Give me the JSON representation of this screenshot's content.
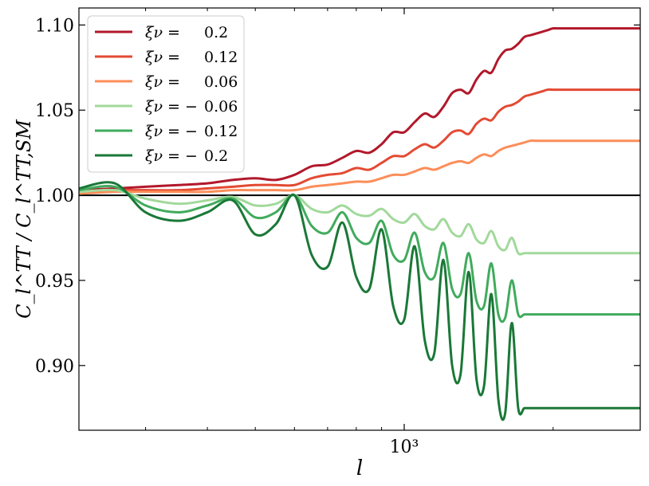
{
  "chart_data": {
    "type": "line",
    "xscale": "log",
    "xlim": [
      220,
      3000
    ],
    "ylim": [
      0.862,
      1.11
    ],
    "xlabel": "l",
    "ylabel": "C_l^TT / C_l^TT,SM",
    "x_ticks": [
      1000
    ],
    "x_tick_labels": [
      "10³"
    ],
    "y_ticks": [
      0.9,
      0.95,
      1.0,
      1.05,
      1.1
    ],
    "y_tick_labels": [
      "0.90",
      "0.95",
      "1.00",
      "1.05",
      "1.10"
    ],
    "grid": false,
    "legend_position": "top-left",
    "reference_line": 1.0,
    "x": [
      220,
      260,
      300,
      350,
      400,
      450,
      500,
      550,
      600,
      650,
      700,
      750,
      800,
      850,
      900,
      950,
      1000,
      1050,
      1100,
      1150,
      1200,
      1250,
      1300,
      1350,
      1400,
      1450,
      1500,
      1550,
      1600,
      1650,
      1700,
      1750,
      1800,
      1850,
      1900,
      1950,
      2000,
      2050,
      2100,
      2150,
      2200,
      2250,
      2300,
      2350,
      2400,
      2450,
      2500,
      2550,
      2600,
      2650,
      2700,
      2750,
      2800,
      2850,
      2900,
      2950,
      3000
    ],
    "series": [
      {
        "name": "ξ_ν = 0.2",
        "legend": {
          "lhs": "ξν =",
          "rhs": "0.2"
        },
        "color": "#b2182b",
        "values": [
          1.003,
          1.004,
          1.005,
          1.006,
          1.007,
          1.009,
          1.01,
          1.009,
          1.012,
          1.017,
          1.018,
          1.022,
          1.026,
          1.025,
          1.03,
          1.037,
          1.037,
          1.043,
          1.048,
          1.046,
          1.052,
          1.06,
          1.062,
          1.06,
          1.068,
          1.073,
          1.072,
          1.08,
          1.085,
          1.086,
          1.089,
          1.093,
          1.094,
          1.095,
          1.096,
          1.097,
          1.098,
          1.098,
          1.098,
          1.098,
          1.098,
          1.098,
          1.098,
          1.098,
          1.098,
          1.098,
          1.098,
          1.098,
          1.098,
          1.098,
          1.098,
          1.098,
          1.098,
          1.098,
          1.098,
          1.098,
          1.098
        ]
      },
      {
        "name": "ξ_ν = 0.12",
        "legend": {
          "lhs": "ξν =",
          "rhs": "0.12"
        },
        "color": "#e34a33",
        "values": [
          1.002,
          1.003,
          1.003,
          1.003,
          1.004,
          1.005,
          1.006,
          1.006,
          1.006,
          1.01,
          1.012,
          1.013,
          1.016,
          1.015,
          1.019,
          1.023,
          1.023,
          1.027,
          1.03,
          1.028,
          1.032,
          1.037,
          1.038,
          1.036,
          1.042,
          1.045,
          1.044,
          1.049,
          1.052,
          1.053,
          1.055,
          1.058,
          1.059,
          1.06,
          1.061,
          1.062,
          1.062,
          1.062,
          1.062,
          1.062,
          1.062,
          1.062,
          1.062,
          1.062,
          1.062,
          1.062,
          1.062,
          1.062,
          1.062,
          1.062,
          1.062,
          1.062,
          1.062,
          1.062,
          1.062,
          1.062,
          1.062
        ]
      },
      {
        "name": "ξ_ν = 0.06",
        "legend": {
          "lhs": "ξν =",
          "rhs": "0.06"
        },
        "color": "#fc8d59",
        "values": [
          1.001,
          1.002,
          1.002,
          1.002,
          1.002,
          1.003,
          1.003,
          1.003,
          1.003,
          1.005,
          1.006,
          1.007,
          1.008,
          1.008,
          1.01,
          1.012,
          1.012,
          1.014,
          1.016,
          1.015,
          1.017,
          1.019,
          1.02,
          1.019,
          1.022,
          1.024,
          1.023,
          1.026,
          1.028,
          1.029,
          1.03,
          1.031,
          1.032,
          1.032,
          1.032,
          1.032,
          1.032,
          1.032,
          1.032,
          1.032,
          1.032,
          1.032,
          1.032,
          1.032,
          1.032,
          1.032,
          1.032,
          1.032,
          1.032,
          1.032,
          1.032,
          1.032,
          1.032,
          1.032,
          1.032,
          1.032,
          1.032
        ]
      },
      {
        "name": "ξ_ν = − 0.06",
        "legend": {
          "lhs": "ξν = −",
          "rhs": "0.06"
        },
        "color": "#a1d99b",
        "values": [
          1.002,
          1.003,
          0.998,
          0.995,
          0.997,
          0.999,
          0.994,
          0.995,
          1.0,
          0.992,
          0.99,
          0.994,
          0.989,
          0.988,
          0.992,
          0.986,
          0.984,
          0.989,
          0.982,
          0.98,
          0.986,
          0.978,
          0.976,
          0.983,
          0.974,
          0.972,
          0.979,
          0.97,
          0.968,
          0.975,
          0.966,
          0.966,
          0.966,
          0.966,
          0.966,
          0.966,
          0.966,
          0.966,
          0.966,
          0.966,
          0.966,
          0.966,
          0.966,
          0.966,
          0.966,
          0.966,
          0.966,
          0.966,
          0.966,
          0.966,
          0.966,
          0.966,
          0.966,
          0.966,
          0.966,
          0.966,
          0.966
        ]
      },
      {
        "name": "ξ_ν = − 0.12",
        "legend": {
          "lhs": "ξν = −",
          "rhs": "0.12"
        },
        "color": "#41ab5d",
        "values": [
          1.003,
          1.005,
          0.994,
          0.99,
          0.994,
          0.998,
          0.987,
          0.99,
          1.0,
          0.982,
          0.978,
          0.99,
          0.975,
          0.972,
          0.985,
          0.965,
          0.962,
          0.978,
          0.955,
          0.952,
          0.972,
          0.945,
          0.942,
          0.966,
          0.938,
          0.935,
          0.96,
          0.93,
          0.928,
          0.95,
          0.93,
          0.93,
          0.93,
          0.93,
          0.93,
          0.93,
          0.93,
          0.93,
          0.93,
          0.93,
          0.93,
          0.93,
          0.93,
          0.93,
          0.93,
          0.93,
          0.93,
          0.93,
          0.93,
          0.93,
          0.93,
          0.93,
          0.93,
          0.93,
          0.93,
          0.93,
          0.93
        ]
      },
      {
        "name": "ξ_ν = − 0.2",
        "legend": {
          "lhs": "ξν = −",
          "rhs": "0.2"
        },
        "color": "#1a7837",
        "values": [
          1.004,
          1.007,
          0.99,
          0.985,
          0.99,
          0.997,
          0.977,
          0.983,
          1.0,
          0.965,
          0.958,
          0.984,
          0.952,
          0.945,
          0.98,
          0.935,
          0.927,
          0.97,
          0.915,
          0.907,
          0.962,
          0.9,
          0.895,
          0.955,
          0.892,
          0.888,
          0.942,
          0.88,
          0.872,
          0.925,
          0.875,
          0.875,
          0.875,
          0.875,
          0.875,
          0.875,
          0.875,
          0.875,
          0.875,
          0.875,
          0.875,
          0.875,
          0.875,
          0.875,
          0.875,
          0.875,
          0.875,
          0.875,
          0.875,
          0.875,
          0.875,
          0.875,
          0.875,
          0.875,
          0.875,
          0.875,
          0.875
        ]
      }
    ]
  }
}
